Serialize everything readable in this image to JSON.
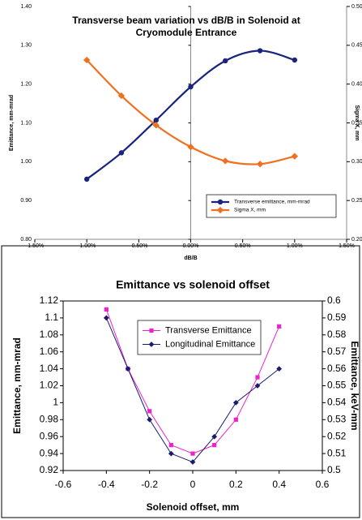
{
  "chart_data": [
    {
      "type": "line",
      "title": "Transverse beam variation vs dB/B in Solenoid at Cryomodule Entrance",
      "x_label": "dB/B",
      "y_label": "Emittance, mm-mrad",
      "y2_label": "Sigma X, mm",
      "xlim": [
        -1.5,
        1.5
      ],
      "xticks": [
        {
          "value": -1.5,
          "label": "-1.50%"
        },
        {
          "value": -1.0,
          "label": "-1.00%"
        },
        {
          "value": -0.5,
          "label": "-0.50%"
        },
        {
          "value": 0,
          "label": "0.00%"
        },
        {
          "value": 0.5,
          "label": "0.50%"
        },
        {
          "value": 1.0,
          "label": "1.00%"
        },
        {
          "value": 1.5,
          "label": "1.50%"
        }
      ],
      "ylim": [
        0.8,
        1.4
      ],
      "yticks": [
        {
          "value": 0.8,
          "label": "0.80"
        },
        {
          "value": 0.9,
          "label": "0.90"
        },
        {
          "value": 1.0,
          "label": "1.00"
        },
        {
          "value": 1.1,
          "label": "1.10"
        },
        {
          "value": 1.2,
          "label": "1.20"
        },
        {
          "value": 1.3,
          "label": "1.30"
        },
        {
          "value": 1.4,
          "label": "1.40"
        }
      ],
      "y2lim": [
        0.2,
        0.5
      ],
      "y2ticks": [
        {
          "value": 0.2,
          "label": "0.20"
        },
        {
          "value": 0.25,
          "label": "0.25"
        },
        {
          "value": 0.3,
          "label": "0.30"
        },
        {
          "value": 0.35,
          "label": "0.35"
        },
        {
          "value": 0.4,
          "label": "0.40"
        },
        {
          "value": 0.45,
          "label": "0.45"
        },
        {
          "value": 0.5,
          "label": "0.50"
        }
      ],
      "legend": "lower right",
      "series": [
        {
          "name": "Transverse emittance, mm-mrad",
          "color": "#1a237e",
          "marker": "circle",
          "x": [
            -1.0,
            -0.667,
            -0.333,
            0,
            0.333,
            0.667,
            1.0
          ],
          "values": [
            0.955,
            1.023,
            1.107,
            1.193,
            1.26,
            1.286,
            1.262
          ]
        },
        {
          "name": "Sigma X, mm",
          "color": "#f07020",
          "marker": "diamond",
          "axis": "y2",
          "x": [
            -1.0,
            -0.667,
            -0.333,
            0,
            0.333,
            0.667,
            1.0
          ],
          "values": [
            0.431,
            0.385,
            0.347,
            0.319,
            0.301,
            0.297,
            0.307
          ]
        }
      ]
    },
    {
      "type": "line",
      "title": "Emittance vs solenoid offset",
      "x_label": "Solenoid offset, mm",
      "y_label": "Emittance, mm-mrad",
      "y2_label": "Emittance, keV-mm",
      "xlim": [
        -0.6,
        0.6
      ],
      "xticks": [
        -0.6,
        -0.4,
        -0.2,
        0,
        0.2,
        0.4,
        0.6
      ],
      "ylim": [
        0.92,
        1.12
      ],
      "yticks": [
        0.92,
        0.94,
        0.96,
        0.98,
        1,
        1.02,
        1.04,
        1.06,
        1.08,
        1.1,
        1.12
      ],
      "y2lim": [
        0.5,
        0.6
      ],
      "y2ticks": [
        0.5,
        0.51,
        0.52,
        0.53,
        0.54,
        0.55,
        0.56,
        0.57,
        0.58,
        0.59,
        0.6
      ],
      "legend": "upper center",
      "series": [
        {
          "name": "Transverse Emittance",
          "color": "#ee22cc",
          "marker": "square",
          "x": [
            -0.4,
            -0.3,
            -0.2,
            -0.1,
            0,
            0.1,
            0.2,
            0.3,
            0.4
          ],
          "values": [
            1.11,
            1.04,
            0.99,
            0.95,
            0.94,
            0.95,
            0.98,
            1.03,
            1.09
          ]
        },
        {
          "name": "Longitudinal Emittance",
          "color": "#1a1a6e",
          "marker": "diamond",
          "axis": "y2",
          "x": [
            -0.4,
            -0.3,
            -0.2,
            -0.1,
            0,
            0.1,
            0.2,
            0.3,
            0.4
          ],
          "values": [
            0.59,
            0.56,
            0.53,
            0.51,
            0.505,
            0.52,
            0.54,
            0.55,
            0.56
          ]
        }
      ]
    }
  ]
}
